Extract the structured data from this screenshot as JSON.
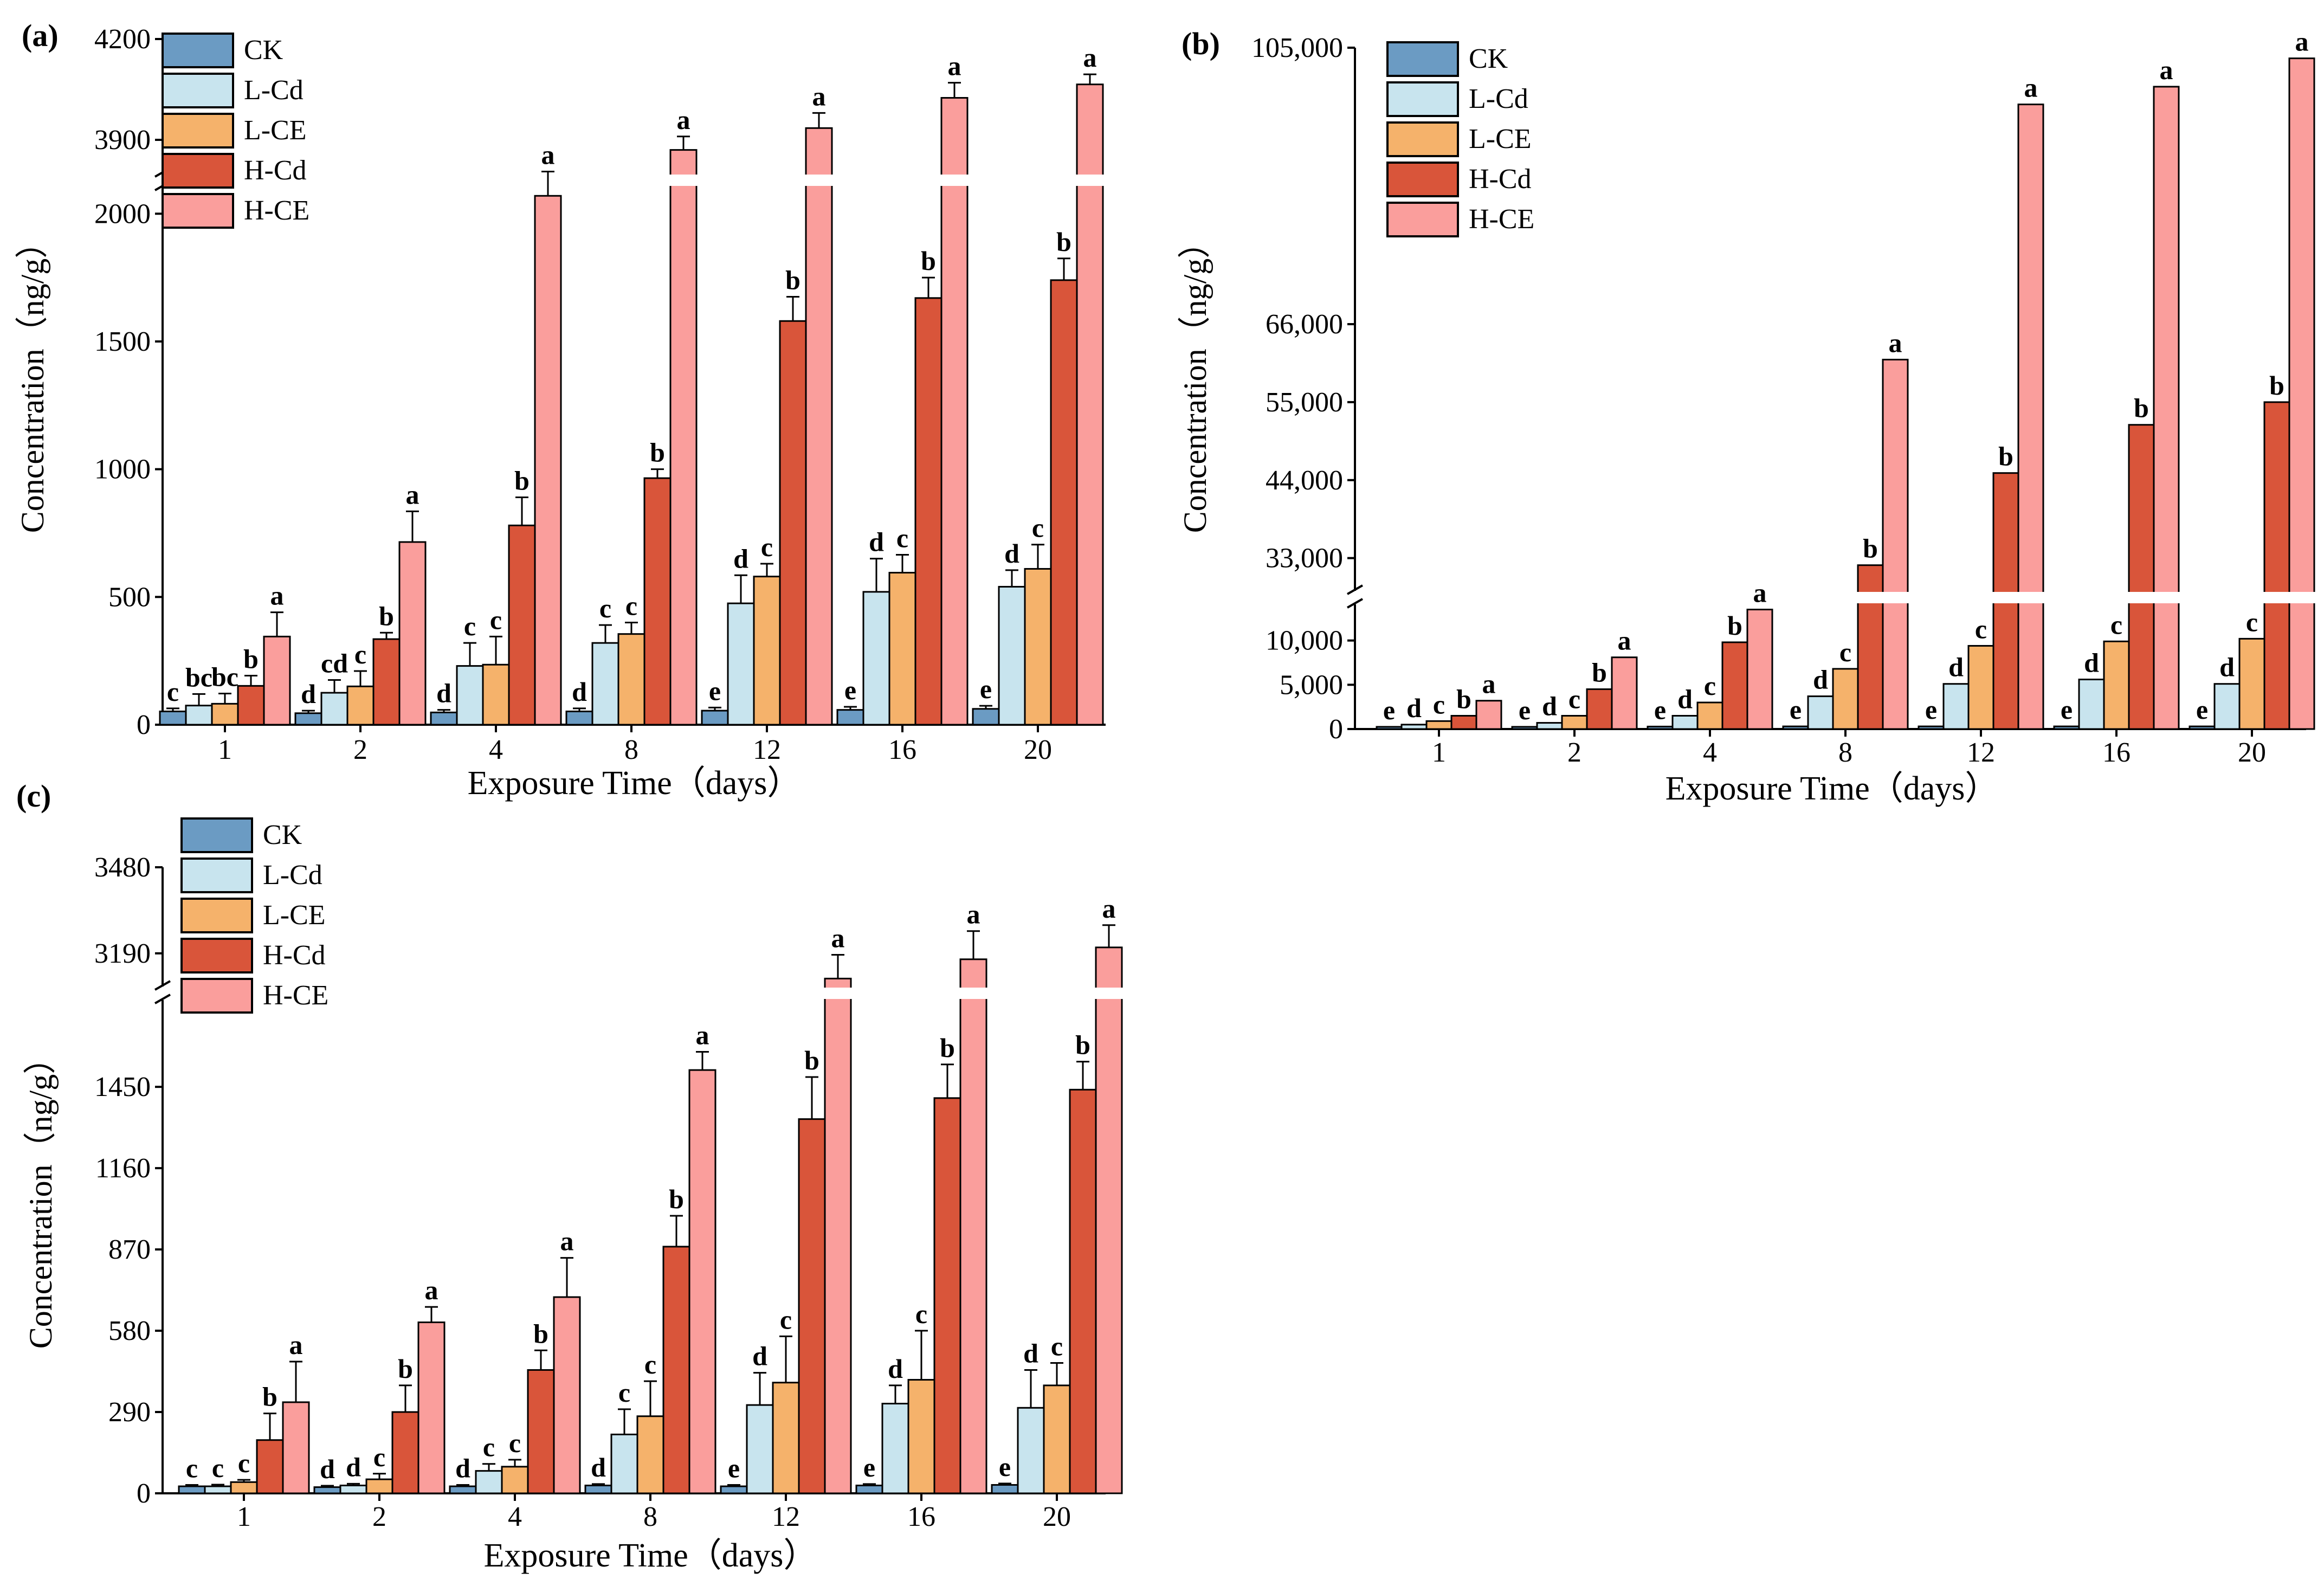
{
  "series_names": [
    "CK",
    "L-Cd",
    "L-CE",
    "H-Cd",
    "H-CE"
  ],
  "colors": {
    "CK": "#6b9bc3",
    "L-Cd": "#c8e4ee",
    "L-CE": "#f5b26b",
    "H-Cd": "#d9553a",
    "H-CE": "#fa9e9c",
    "break_gap": "#ffffff",
    "axis": "#000000"
  },
  "chart_data": [
    {
      "panel": "(a)",
      "type": "bar",
      "title": "",
      "xlabel": "Exposure Time（days）",
      "ylabel": "Concentration（ng/g）",
      "categories": [
        "1",
        "2",
        "4",
        "8",
        "12",
        "16",
        "20"
      ],
      "lower_ylim": [
        0,
        2200
      ],
      "upper_ylim": [
        3800,
        4200
      ],
      "yticks_lower": [
        "0",
        "500",
        "1000",
        "1500",
        "2000"
      ],
      "yticks_upper": [
        "3900",
        "4200"
      ],
      "series": [
        {
          "name": "CK",
          "values": [
            52,
            45,
            48,
            52,
            55,
            58,
            62
          ],
          "errors": [
            12,
            10,
            10,
            12,
            12,
            12,
            12
          ],
          "letters": [
            "c",
            "d",
            "d",
            "d",
            "e",
            "e",
            "e"
          ]
        },
        {
          "name": "L-Cd",
          "values": [
            75,
            125,
            230,
            320,
            475,
            520,
            540
          ],
          "errors": [
            45,
            50,
            90,
            70,
            110,
            130,
            65
          ],
          "letters": [
            "bc",
            "cd",
            "c",
            "c",
            "d",
            "d",
            "d"
          ]
        },
        {
          "name": "L-CE",
          "values": [
            82,
            150,
            235,
            355,
            580,
            595,
            610
          ],
          "errors": [
            40,
            60,
            110,
            45,
            50,
            70,
            95
          ],
          "letters": [
            "bc",
            "c",
            "c",
            "c",
            "c",
            "c",
            "c"
          ]
        },
        {
          "name": "H-Cd",
          "values": [
            152,
            335,
            780,
            965,
            1580,
            1670,
            1740
          ],
          "errors": [
            40,
            25,
            110,
            35,
            95,
            80,
            85
          ],
          "letters": [
            "b",
            "b",
            "b",
            "b",
            "b",
            "b",
            "b"
          ]
        },
        {
          "name": "H-CE",
          "values": [
            345,
            715,
            2070,
            3870,
            3935,
            4025,
            4065
          ],
          "errors": [
            95,
            120,
            95,
            40,
            45,
            45,
            30
          ],
          "letters": [
            "a",
            "a",
            "a",
            "a",
            "a",
            "a",
            "a"
          ]
        }
      ]
    },
    {
      "panel": "(b)",
      "type": "bar",
      "title": "",
      "xlabel": "Exposure Time（days）",
      "ylabel": "Concentration（ng/g）",
      "categories": [
        "1",
        "2",
        "4",
        "8",
        "12",
        "16",
        "20"
      ],
      "lower_ylim": [
        0,
        15000
      ],
      "upper_ylim": [
        28000,
        105000
      ],
      "yticks_lower": [
        "0",
        "5,000",
        "10,000"
      ],
      "yticks_upper": [
        "33,000",
        "44,000",
        "55,000",
        "66,000",
        "105,000"
      ],
      "series": [
        {
          "name": "CK",
          "values": [
            250,
            250,
            280,
            300,
            300,
            300,
            300
          ],
          "errors": [
            0,
            0,
            0,
            0,
            0,
            0,
            0
          ],
          "letters": [
            "e",
            "e",
            "e",
            "e",
            "e",
            "e",
            "e"
          ]
        },
        {
          "name": "L-Cd",
          "values": [
            500,
            700,
            1500,
            3700,
            5100,
            5600,
            5100
          ],
          "errors": [
            0,
            0,
            0,
            0,
            0,
            0,
            0
          ],
          "letters": [
            "d",
            "d",
            "d",
            "d",
            "d",
            "d",
            "d"
          ]
        },
        {
          "name": "L-CE",
          "values": [
            900,
            1500,
            3000,
            6800,
            9400,
            9900,
            10200
          ],
          "errors": [
            0,
            0,
            0,
            0,
            0,
            0,
            0
          ],
          "letters": [
            "c",
            "c",
            "c",
            "c",
            "c",
            "c",
            "c"
          ]
        },
        {
          "name": "H-Cd",
          "values": [
            1500,
            4500,
            9800,
            32000,
            45000,
            51800,
            55000
          ],
          "errors": [
            0,
            0,
            0,
            0,
            0,
            0,
            0
          ],
          "letters": [
            "b",
            "b",
            "b",
            "b",
            "b",
            "b",
            "b"
          ]
        },
        {
          "name": "H-CE",
          "values": [
            3200,
            8100,
            13500,
            61000,
            97000,
            99500,
            103500
          ],
          "errors": [
            0,
            0,
            0,
            0,
            0,
            0,
            0
          ],
          "letters": [
            "a",
            "a",
            "a",
            "a",
            "a",
            "a",
            "a"
          ]
        }
      ]
    },
    {
      "panel": "(c)",
      "type": "bar",
      "title": "",
      "xlabel": "Exposure Time（days）",
      "ylabel": "Concentration（ng/g）",
      "categories": [
        "1",
        "2",
        "4",
        "8",
        "12",
        "16",
        "20"
      ],
      "lower_ylim": [
        0,
        1750
      ],
      "upper_ylim": [
        3060,
        3480
      ],
      "yticks_lower": [
        "0",
        "290",
        "580",
        "870",
        "1160",
        "1450"
      ],
      "yticks_upper": [
        "3190",
        "3480"
      ],
      "series": [
        {
          "name": "CK",
          "values": [
            25,
            22,
            25,
            28,
            25,
            28,
            30
          ],
          "errors": [
            5,
            5,
            5,
            5,
            5,
            5,
            5
          ],
          "letters": [
            "c",
            "d",
            "d",
            "d",
            "e",
            "e",
            "e"
          ]
        },
        {
          "name": "L-Cd",
          "values": [
            25,
            28,
            80,
            210,
            315,
            320,
            305
          ],
          "errors": [
            6,
            6,
            25,
            90,
            115,
            65,
            135
          ],
          "letters": [
            "c",
            "d",
            "c",
            "c",
            "d",
            "d",
            "d"
          ]
        },
        {
          "name": "L-CE",
          "values": [
            40,
            50,
            95,
            275,
            395,
            405,
            385
          ],
          "errors": [
            8,
            20,
            25,
            125,
            165,
            175,
            80
          ],
          "letters": [
            "c",
            "c",
            "c",
            "c",
            "c",
            "c",
            "c"
          ]
        },
        {
          "name": "H-Cd",
          "values": [
            190,
            290,
            440,
            880,
            1335,
            1410,
            1440
          ],
          "errors": [
            95,
            95,
            70,
            110,
            150,
            120,
            100
          ],
          "letters": [
            "b",
            "b",
            "b",
            "b",
            "b",
            "b",
            "b"
          ]
        },
        {
          "name": "H-CE",
          "values": [
            325,
            610,
            700,
            1510,
            3105,
            3170,
            3210
          ],
          "errors": [
            145,
            55,
            140,
            65,
            80,
            95,
            75
          ],
          "letters": [
            "a",
            "a",
            "a",
            "a",
            "a",
            "a",
            "a"
          ]
        }
      ]
    }
  ]
}
